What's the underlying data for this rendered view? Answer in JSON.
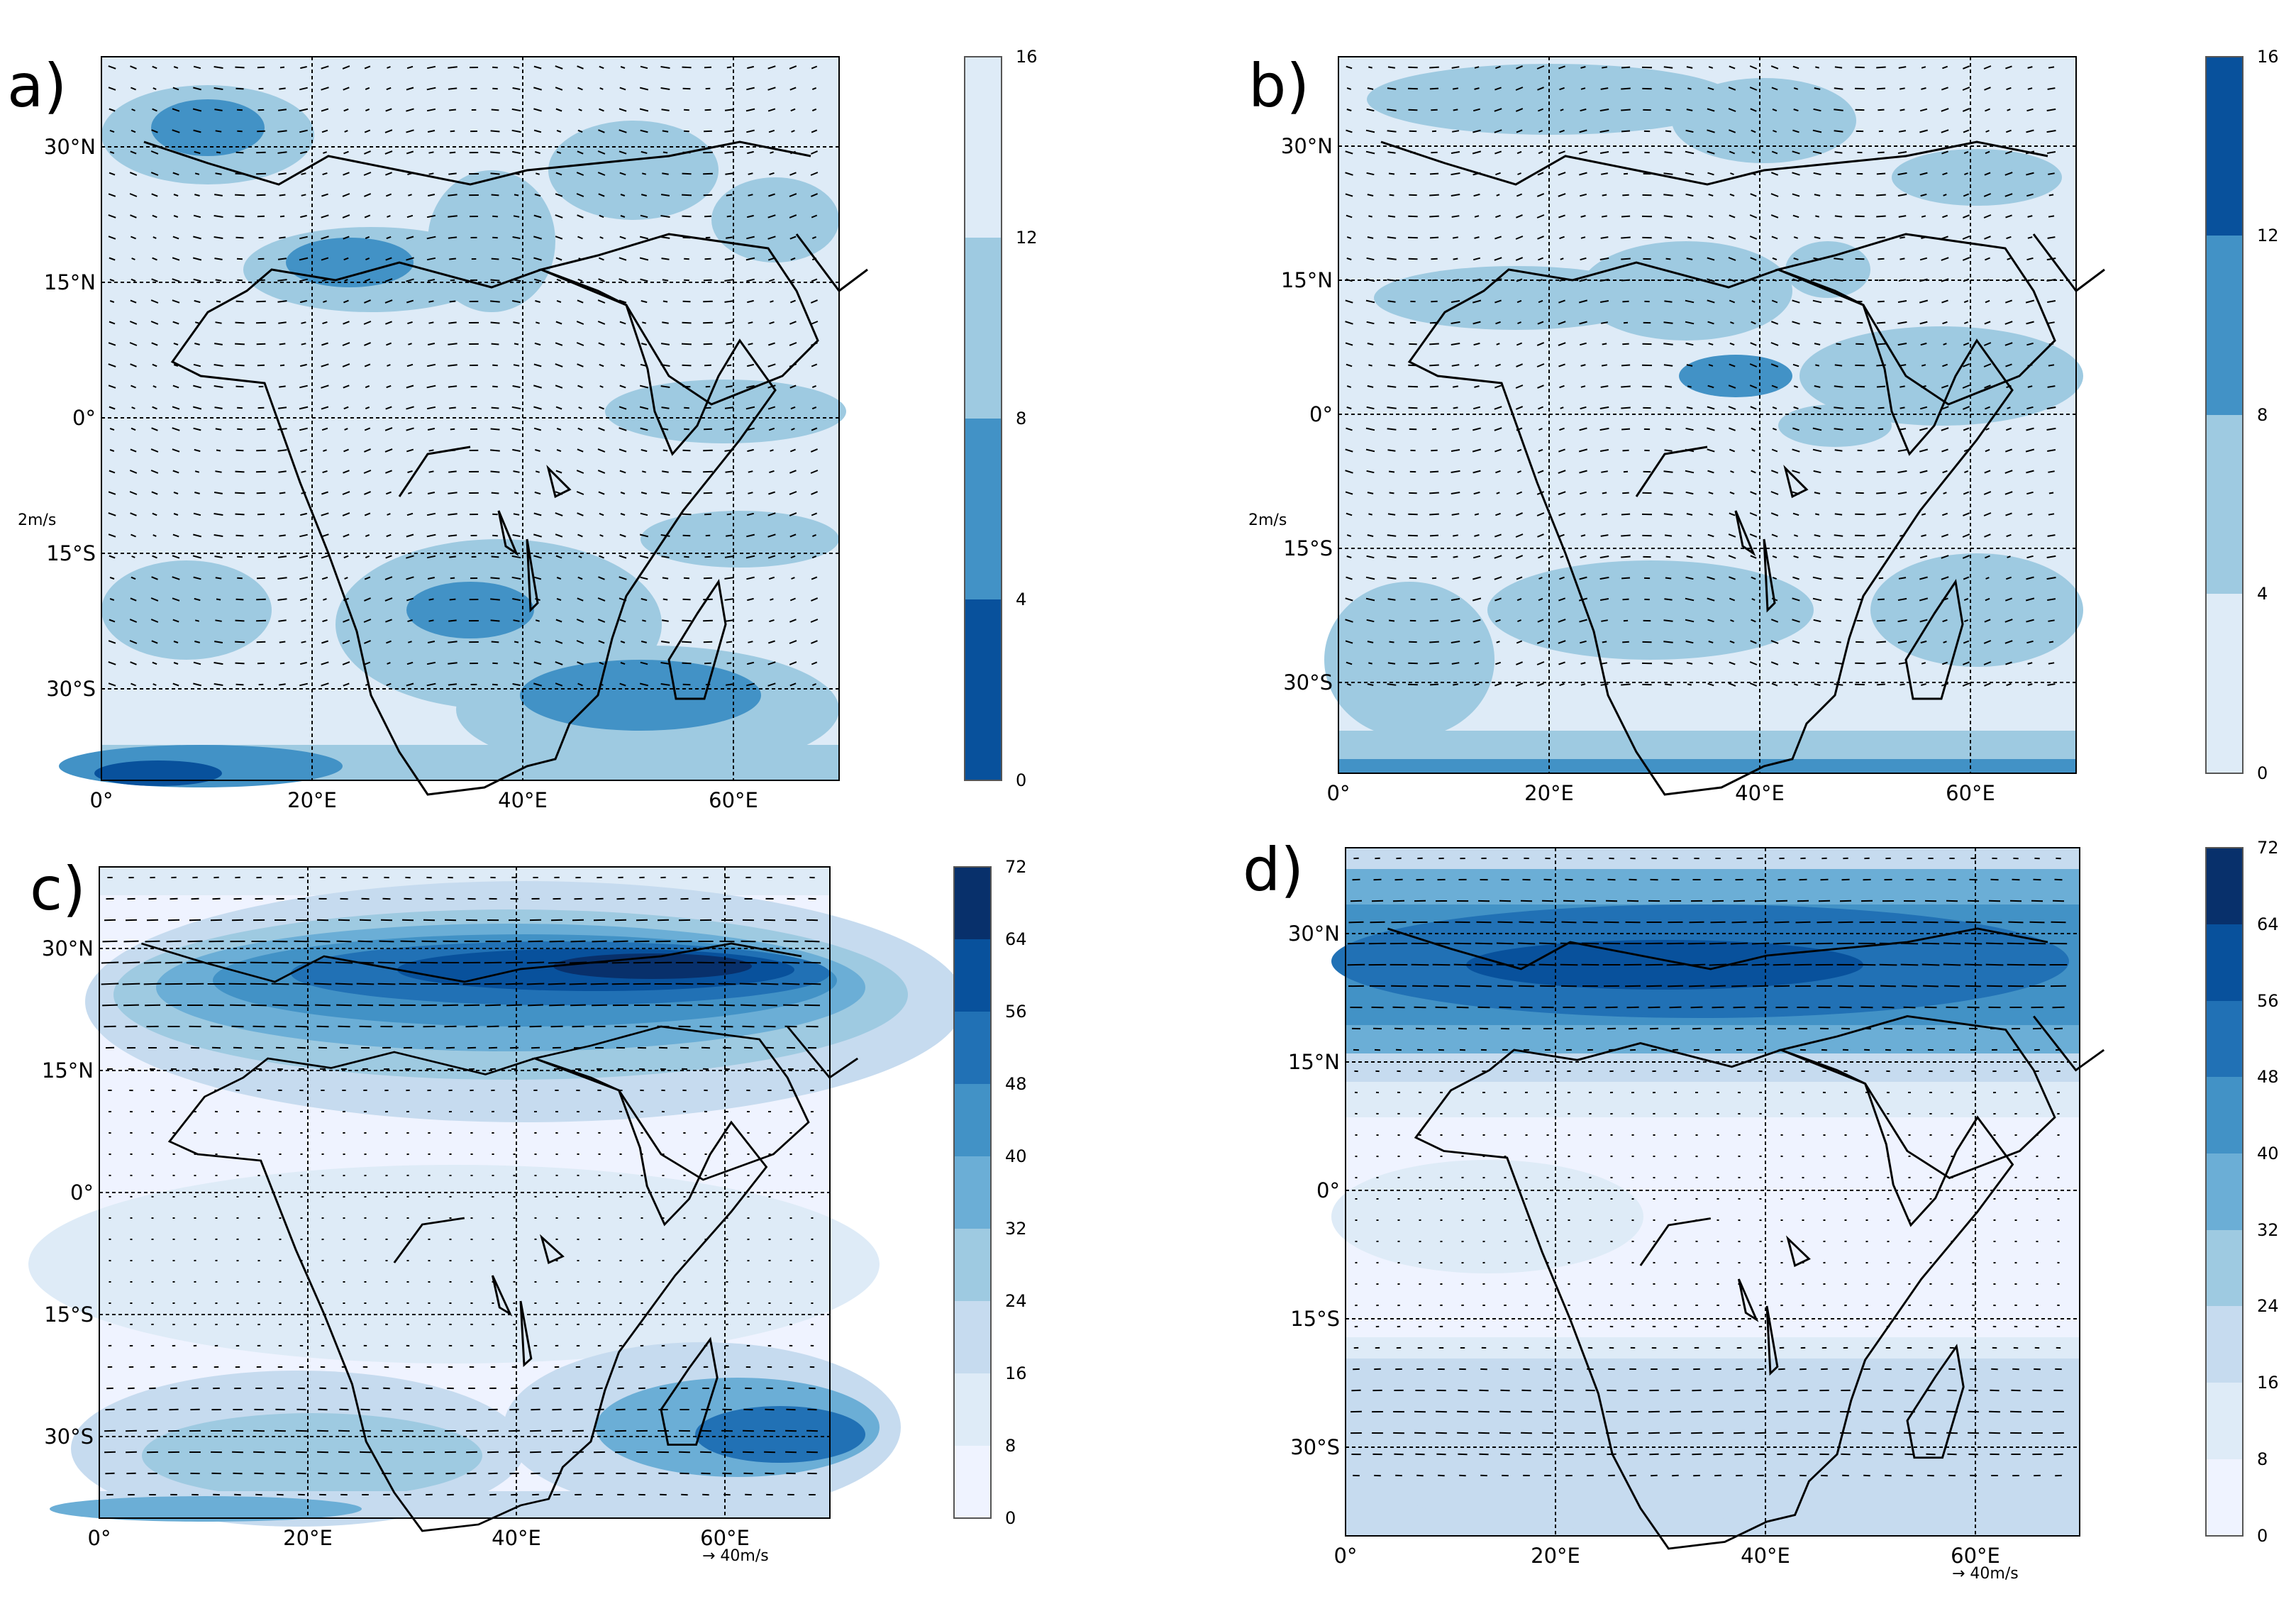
{
  "panels": [
    {
      "label": "a)",
      "lon_ticks": [
        "0°",
        "20°E",
        "40°E",
        "60°E"
      ],
      "lat_ticks": [
        "30°N",
        "15°N",
        "0°",
        "15°S",
        "30°S"
      ],
      "colorbar_ticks": [
        "0",
        "4",
        "8",
        "12",
        "16"
      ],
      "colorbar_colors": [
        "#deebf7",
        "#9ecae1",
        "#4292c6",
        "#08519c"
      ],
      "quiver_key": "2m/s"
    },
    {
      "label": "b)",
      "lon_ticks": [
        "0°",
        "20°E",
        "40°E",
        "60°E"
      ],
      "lat_ticks": [
        "30°N",
        "15°N",
        "0°",
        "15°S",
        "30°S"
      ],
      "colorbar_ticks": [
        "0",
        "4",
        "8",
        "12",
        "16"
      ],
      "colorbar_colors": [
        "#deebf7",
        "#9ecae1",
        "#4292c6",
        "#08519c"
      ],
      "quiver_key": "2m/s"
    },
    {
      "label": "c)",
      "lon_ticks": [
        "0°",
        "20°E",
        "40°E",
        "60°E"
      ],
      "lat_ticks": [
        "30°N",
        "15°N",
        "0°",
        "15°S",
        "30°S"
      ],
      "colorbar_ticks": [
        "0",
        "8",
        "16",
        "24",
        "32",
        "40",
        "48",
        "56",
        "64",
        "72"
      ],
      "colorbar_colors": [
        "#eff3ff",
        "#deebf7",
        "#c6dbef",
        "#9ecae1",
        "#6baed6",
        "#4292c6",
        "#2171b5",
        "#08519c",
        "#08306b"
      ],
      "quiver_key": "→ 40m/s"
    },
    {
      "label": "d)",
      "lon_ticks": [
        "0°",
        "20°E",
        "40°E",
        "60°E"
      ],
      "lat_ticks": [
        "30°N",
        "15°N",
        "0°",
        "15°S",
        "30°S"
      ],
      "colorbar_ticks": [
        "0",
        "8",
        "16",
        "24",
        "32",
        "40",
        "48",
        "56",
        "64",
        "72"
      ],
      "colorbar_colors": [
        "#eff3ff",
        "#deebf7",
        "#c6dbef",
        "#9ecae1",
        "#6baed6",
        "#4292c6",
        "#2171b5",
        "#08519c",
        "#08306b"
      ],
      "quiver_key": "→ 40m/s"
    }
  ]
}
